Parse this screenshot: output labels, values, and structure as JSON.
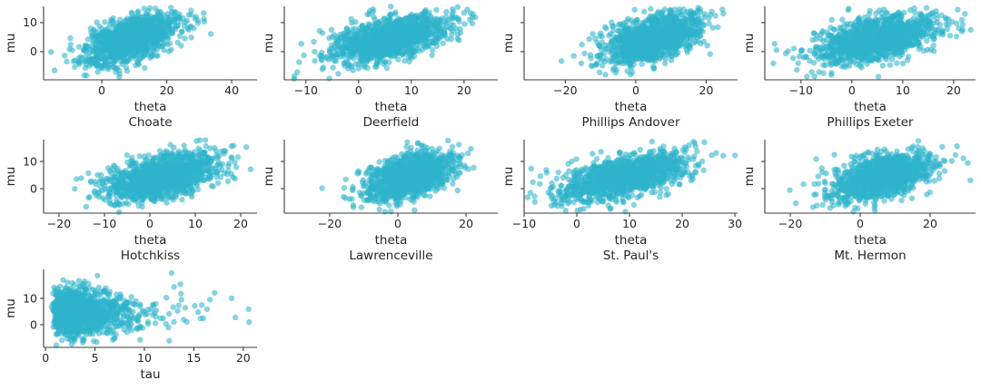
{
  "figure": {
    "background": "#ffffff",
    "marker": {
      "color": "#2fb3cb",
      "opacity": 0.58,
      "radius": 3.2
    },
    "axis_style": {
      "spine_color": "#3c3c3c",
      "tick_color": "#3c3c3c",
      "text_color": "#262626"
    }
  },
  "chart_data": {
    "type": "scatter",
    "description": "3x4 grid of 9 posterior scatter subplots (8-schools model): theta per school vs mu, and tau vs mu",
    "shared": {
      "ylabel": "mu",
      "yticks": [
        [
          0,
          "0"
        ],
        [
          10,
          "10"
        ]
      ],
      "n_points": 1300,
      "outlier_frac": 0.035,
      "outlier_scale": 1.9
    },
    "panels": [
      {
        "slug": "choate",
        "xlabel": "theta",
        "title": "Choate",
        "xlim": [
          -17.9,
          47.8
        ],
        "ylim": [
          -9.7,
          15.6
        ],
        "xticks": [
          [
            0,
            "0"
          ],
          [
            20,
            "20"
          ],
          [
            40,
            "40"
          ]
        ],
        "ytick_labels": true,
        "model": {
          "x_dist": "normal",
          "x_mean": 9.0,
          "x_sd": 7.0,
          "y_mean": 4.5,
          "y_sd": 4.2,
          "corr": 0.55,
          "seed": 101
        }
      },
      {
        "slug": "deerfield",
        "xlabel": "theta",
        "title": "Deerfield",
        "xlim": [
          -14.1,
          26.4
        ],
        "ylim": [
          -9.7,
          15.6
        ],
        "xticks": [
          [
            -10,
            "−10"
          ],
          [
            0,
            "0"
          ],
          [
            10,
            "10"
          ],
          [
            20,
            "20"
          ]
        ],
        "ytick_labels": false,
        "model": {
          "x_dist": "normal",
          "x_mean": 6.0,
          "x_sd": 5.5,
          "y_mean": 4.5,
          "y_sd": 4.2,
          "corr": 0.55,
          "seed": 102
        }
      },
      {
        "slug": "phillips-andover",
        "xlabel": "theta",
        "title": "Phillips Andover",
        "xlim": [
          -31.7,
          28.9
        ],
        "ylim": [
          -9.7,
          15.6
        ],
        "xticks": [
          [
            -20,
            "−20"
          ],
          [
            0,
            "0"
          ],
          [
            20,
            "20"
          ]
        ],
        "ytick_labels": false,
        "model": {
          "x_dist": "normal",
          "x_mean": 4.5,
          "x_sd": 6.5,
          "y_mean": 4.5,
          "y_sd": 4.2,
          "corr": 0.5,
          "seed": 103
        }
      },
      {
        "slug": "phillips-exeter",
        "xlabel": "theta",
        "title": "Phillips Exeter",
        "xlim": [
          -17.1,
          24.3
        ],
        "ylim": [
          -9.7,
          15.6
        ],
        "xticks": [
          [
            -10,
            "−10"
          ],
          [
            0,
            "0"
          ],
          [
            10,
            "10"
          ],
          [
            20,
            "20"
          ]
        ],
        "ytick_labels": false,
        "model": {
          "x_dist": "normal",
          "x_mean": 5.0,
          "x_sd": 6.0,
          "y_mean": 4.5,
          "y_sd": 4.2,
          "corr": 0.5,
          "seed": 104
        }
      },
      {
        "slug": "hotchkiss",
        "xlabel": "theta",
        "title": "Hotchkiss",
        "xlim": [
          -23.4,
          23.6
        ],
        "ylim": [
          -9.0,
          18.0
        ],
        "xticks": [
          [
            -20,
            "−20"
          ],
          [
            -10,
            "−10"
          ],
          [
            0,
            "0"
          ],
          [
            10,
            "10"
          ],
          [
            20,
            "20"
          ]
        ],
        "ytick_labels": true,
        "model": {
          "x_dist": "normal",
          "x_mean": 3.0,
          "x_sd": 6.0,
          "y_mean": 4.5,
          "y_sd": 4.3,
          "corr": 0.5,
          "seed": 105
        }
      },
      {
        "slug": "lawrenceville",
        "xlabel": "theta",
        "title": "Lawrenceville",
        "xlim": [
          -33.3,
          29.3
        ],
        "ylim": [
          -9.0,
          18.0
        ],
        "xticks": [
          [
            -20,
            "−20"
          ],
          [
            0,
            "0"
          ],
          [
            20,
            "20"
          ]
        ],
        "ytick_labels": false,
        "model": {
          "x_dist": "normal",
          "x_mean": 3.5,
          "x_sd": 6.0,
          "y_mean": 4.5,
          "y_sd": 4.3,
          "corr": 0.5,
          "seed": 106
        }
      },
      {
        "slug": "st-pauls",
        "xlabel": "theta",
        "title": "St. Paul's",
        "xlim": [
          -10.0,
          30.5
        ],
        "ylim": [
          -9.0,
          18.0
        ],
        "xticks": [
          [
            -10,
            "−10"
          ],
          [
            0,
            "0"
          ],
          [
            10,
            "10"
          ],
          [
            20,
            "20"
          ],
          [
            30,
            "30"
          ]
        ],
        "ytick_labels": false,
        "model": {
          "x_dist": "normal",
          "x_mean": 9.0,
          "x_sd": 6.0,
          "y_mean": 4.5,
          "y_sd": 4.3,
          "corr": 0.55,
          "seed": 107
        }
      },
      {
        "slug": "mt-hermon",
        "xlabel": "theta",
        "title": "Mt. Hermon",
        "xlim": [
          -27.3,
          33.0
        ],
        "ylim": [
          -9.0,
          18.0
        ],
        "xticks": [
          [
            -20,
            "−20"
          ],
          [
            0,
            "0"
          ],
          [
            20,
            "20"
          ]
        ],
        "ytick_labels": false,
        "model": {
          "x_dist": "normal",
          "x_mean": 6.5,
          "x_sd": 7.0,
          "y_mean": 4.5,
          "y_sd": 4.3,
          "corr": 0.45,
          "seed": 108
        }
      },
      {
        "slug": "tau",
        "xlabel": "tau",
        "title": "",
        "xlim": [
          -0.2,
          21.4
        ],
        "ylim": [
          -8.6,
          21.0
        ],
        "xticks": [
          [
            0,
            "0"
          ],
          [
            5,
            "5"
          ],
          [
            10,
            "10"
          ],
          [
            15,
            "15"
          ],
          [
            20,
            "20"
          ]
        ],
        "ytick_labels": true,
        "model": {
          "x_dist": "lognormal",
          "x_logmean": 1.2,
          "x_logsd": 0.6,
          "x_min": 0.6,
          "y_mean": 4.8,
          "y_sd": 4.3,
          "corr": -0.05,
          "seed": 109
        }
      }
    ]
  }
}
